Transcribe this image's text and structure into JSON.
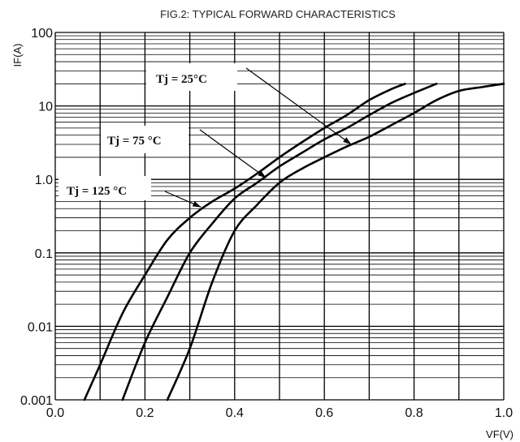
{
  "chart_data": {
    "type": "line",
    "title": "FIG.2: TYPICAL FORWARD CHARACTERISTICS",
    "xlabel": "VF(V)",
    "ylabel": "IF(A)",
    "xlim": [
      0.0,
      1.0
    ],
    "ylim": [
      0.001,
      100
    ],
    "yscale": "log",
    "grid": true,
    "x_ticks": [
      "0.0",
      "0.2",
      "0.4",
      "0.6",
      "0.8",
      "1.0"
    ],
    "y_ticks": [
      "0.001",
      "0.01",
      "0.1",
      "1.0",
      "10",
      "100"
    ],
    "series": [
      {
        "name": "Tj = 125 °C",
        "x": [
          0.065,
          0.1,
          0.15,
          0.2,
          0.25,
          0.3,
          0.35,
          0.4,
          0.45,
          0.5,
          0.55,
          0.6,
          0.65,
          0.7,
          0.75,
          0.78
        ],
        "y": [
          0.001,
          0.003,
          0.015,
          0.05,
          0.15,
          0.3,
          0.5,
          0.75,
          1.2,
          2.0,
          3.2,
          5.0,
          7.5,
          12,
          17,
          20
        ]
      },
      {
        "name": "Tj = 75 °C",
        "x": [
          0.15,
          0.2,
          0.25,
          0.3,
          0.35,
          0.4,
          0.45,
          0.5,
          0.55,
          0.6,
          0.65,
          0.7,
          0.75,
          0.8,
          0.85
        ],
        "y": [
          0.001,
          0.006,
          0.025,
          0.1,
          0.25,
          0.55,
          0.9,
          1.5,
          2.3,
          3.5,
          5.0,
          7.5,
          11,
          15,
          20
        ]
      },
      {
        "name": "Tj = 25°C",
        "x": [
          0.25,
          0.3,
          0.35,
          0.4,
          0.45,
          0.5,
          0.55,
          0.6,
          0.65,
          0.7,
          0.75,
          0.8,
          0.85,
          0.9,
          0.95,
          1.0
        ],
        "y": [
          0.001,
          0.005,
          0.04,
          0.2,
          0.45,
          0.9,
          1.4,
          2.0,
          2.8,
          3.8,
          5.5,
          8.0,
          12,
          16,
          18,
          20
        ]
      }
    ],
    "annotations": [
      {
        "text": "Tj = 25°C",
        "series": 2
      },
      {
        "text": "Tj = 75 °C",
        "series": 1
      },
      {
        "text": "Tj = 125 °C",
        "series": 0
      }
    ]
  }
}
